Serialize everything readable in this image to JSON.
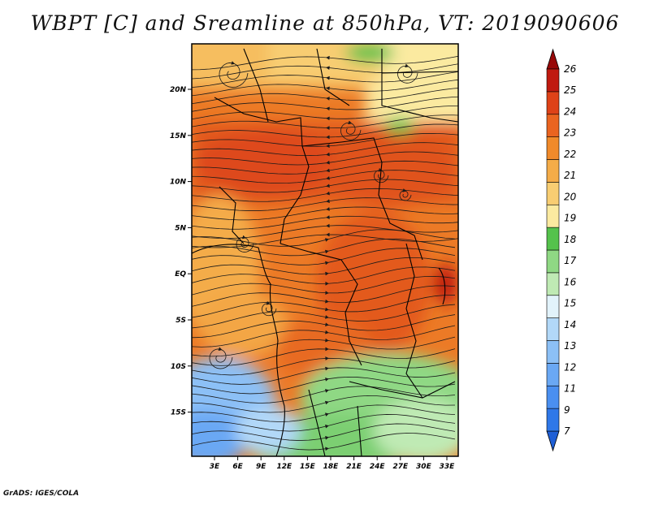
{
  "title": "WBPT [C] and Sreamline at 850hPa, VT: 2019090606",
  "credit": "GrADS: IGES/COLA",
  "map": {
    "lat_labels": [
      "20N",
      "15N",
      "10N",
      "5N",
      "EQ",
      "5S",
      "10S",
      "15S"
    ],
    "lon_labels": [
      "3E",
      "6E",
      "9E",
      "12E",
      "15E",
      "18E",
      "21E",
      "24E",
      "27E",
      "30E",
      "33E"
    ]
  },
  "colorbar": {
    "labels": [
      "7",
      "9",
      "11",
      "12",
      "13",
      "14",
      "15",
      "16",
      "17",
      "18",
      "19",
      "20",
      "21",
      "22",
      "23",
      "24",
      "25",
      "26"
    ],
    "colors": [
      "#1f5fd6",
      "#2f78e8",
      "#4a8ff0",
      "#6aa8f4",
      "#8cc0f6",
      "#b2d8f8",
      "#e2f3fb",
      "#bfeab4",
      "#8fd884",
      "#55c24c",
      "#fbeaa0",
      "#f8cd72",
      "#f4ac48",
      "#f08a2a",
      "#ea6420",
      "#de4218",
      "#c01a10",
      "#980808"
    ]
  }
}
